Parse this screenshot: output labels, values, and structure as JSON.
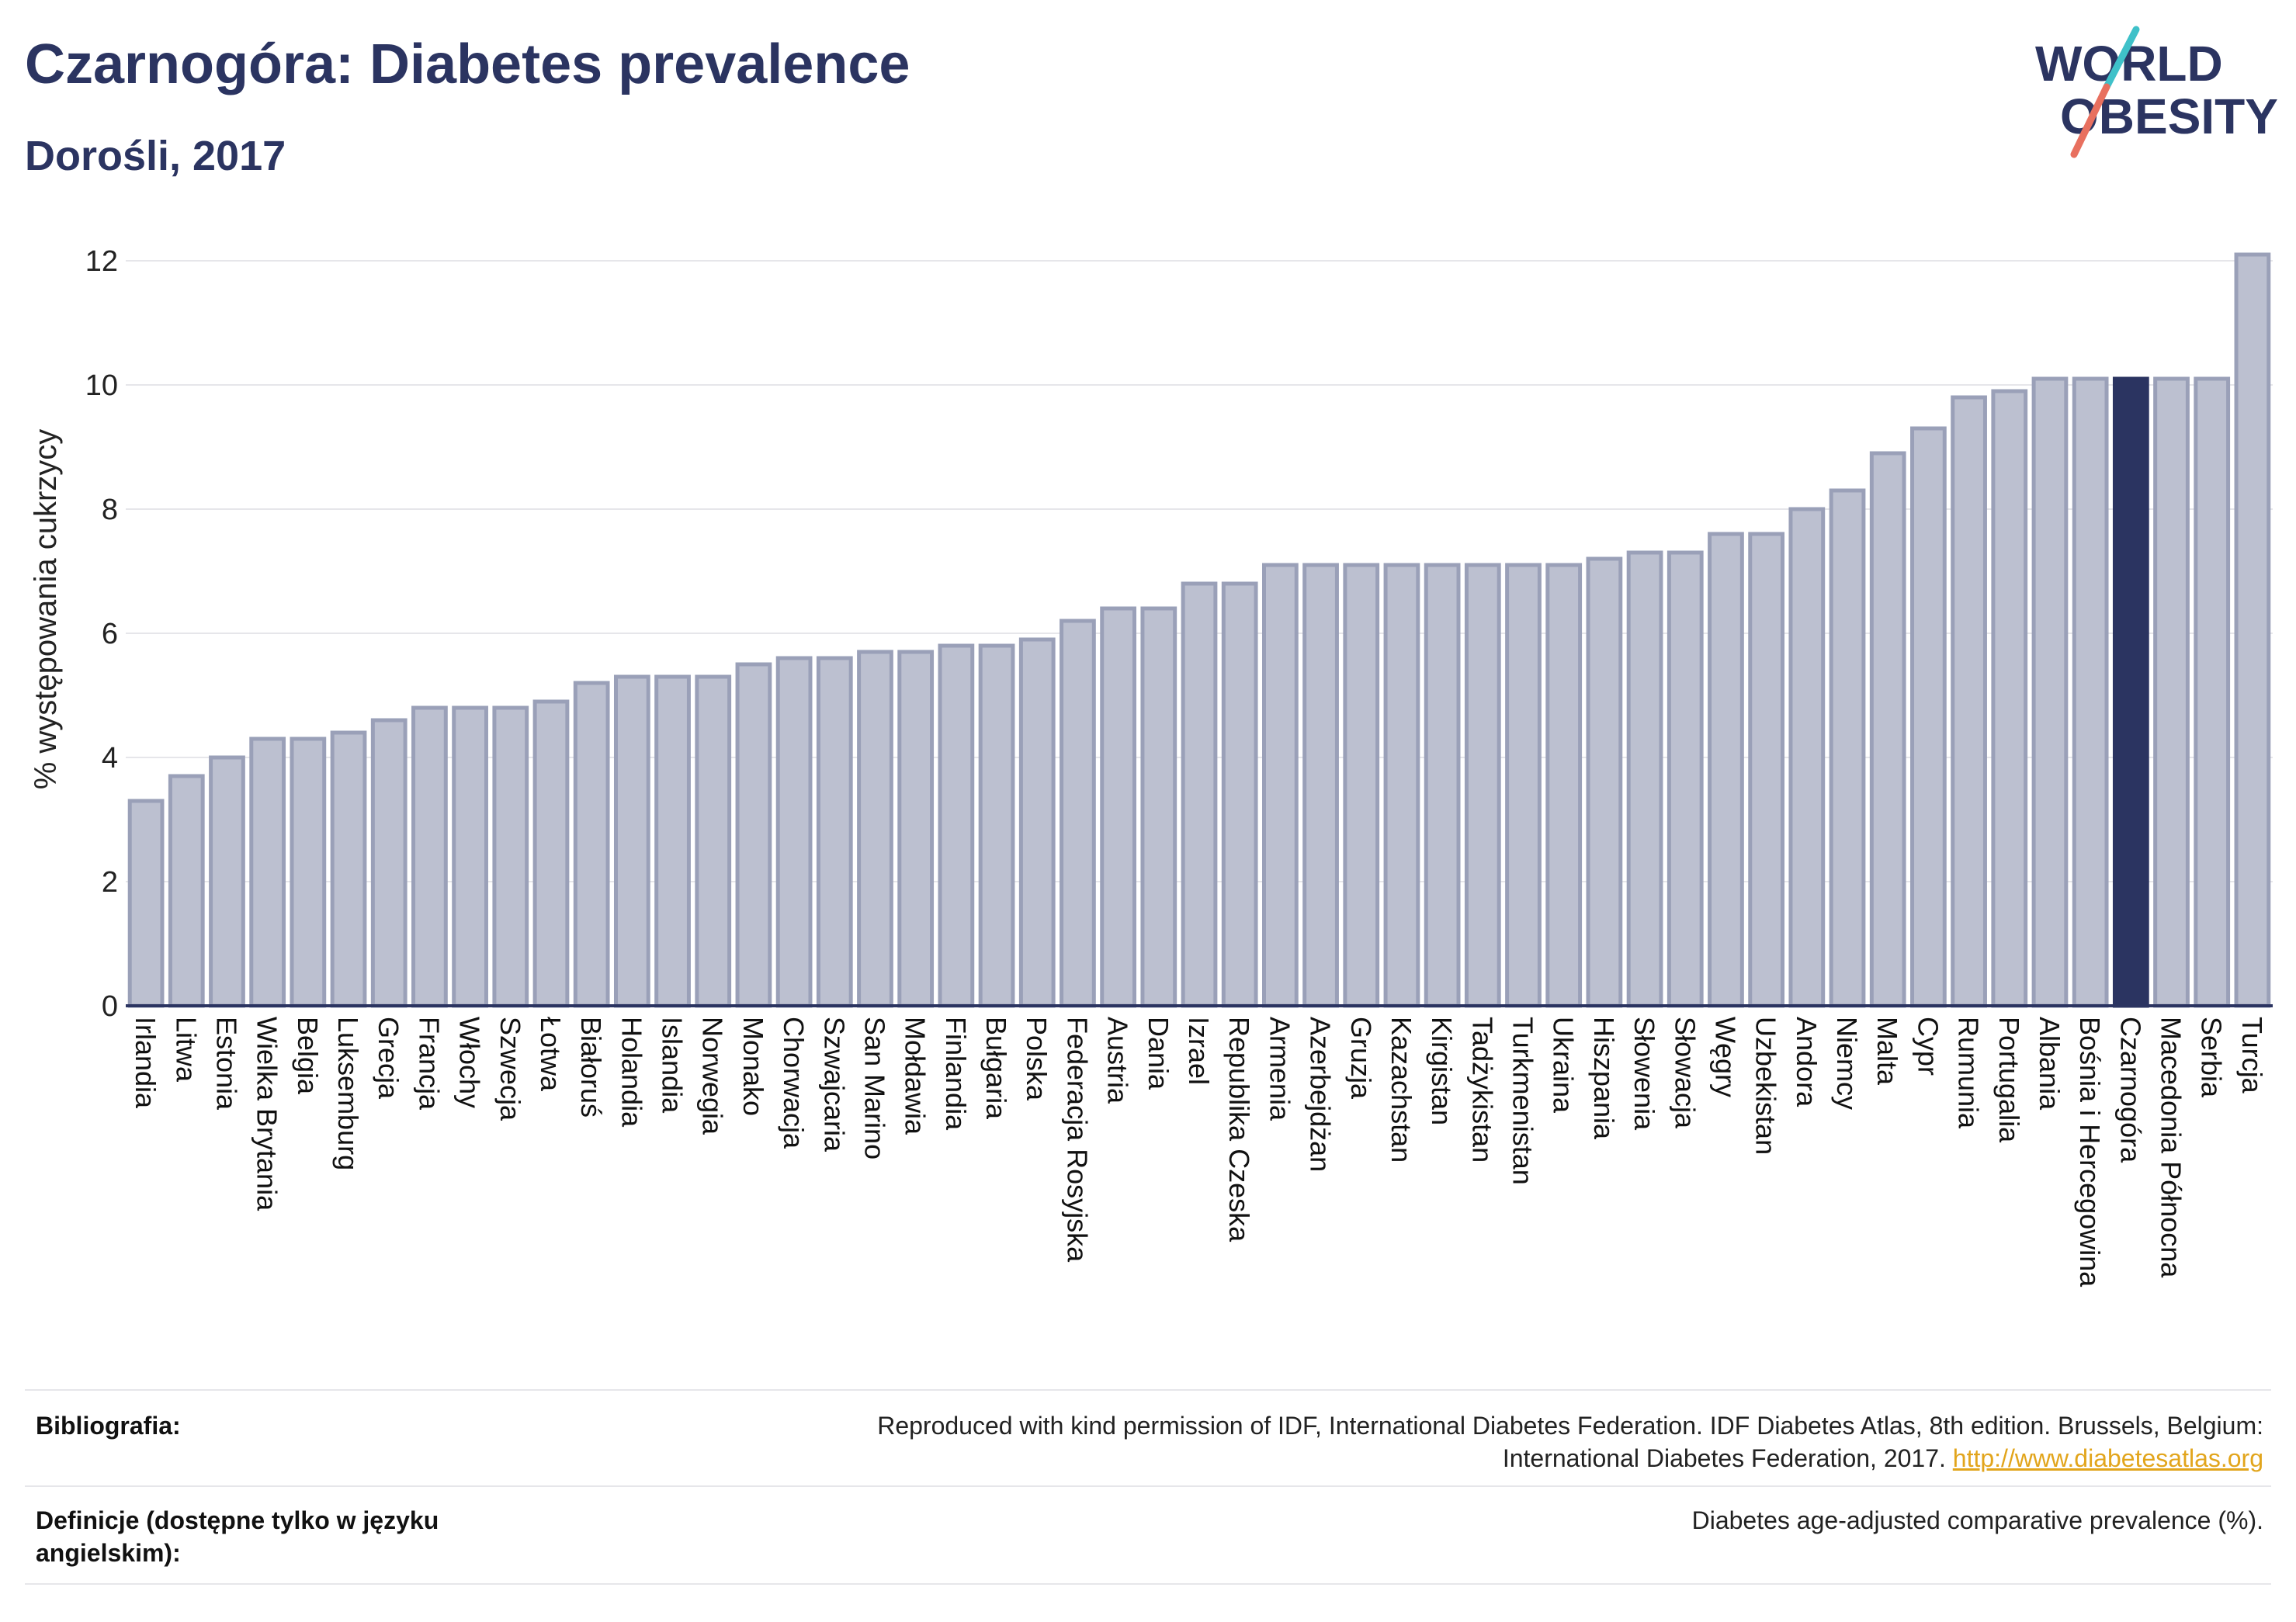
{
  "header": {
    "title": "Czarnogóra: Diabetes prevalence",
    "subtitle": "Dorośli, 2017",
    "logo": {
      "line1": "WORLD",
      "line2": "OBESITY",
      "slash_colors": [
        "#3fc1c9",
        "#e8705f"
      ]
    }
  },
  "colors": {
    "bar_fill": "#bcc0d0",
    "bar_stroke": "#9aa0b8",
    "highlight_fill": "#2b3461",
    "text": "#2b3461",
    "link": "#e2a51c"
  },
  "chart_data": {
    "type": "bar",
    "ylabel": "% występowania cukrzycy",
    "ylim": [
      0,
      12.5
    ],
    "yticks": [
      0,
      2,
      4,
      6,
      8,
      10,
      12
    ],
    "grid": true,
    "highlight": "Czarnogóra",
    "categories": [
      "Irlandia",
      "Litwa",
      "Estonia",
      "Wielka Brytania",
      "Belgia",
      "Luksemburg",
      "Grecja",
      "Francja",
      "Włochy",
      "Szwecja",
      "Łotwa",
      "Białoruś",
      "Holandia",
      "Islandia",
      "Norwegia",
      "Monako",
      "Chorwacja",
      "Szwajcaria",
      "San Marino",
      "Mołdawia",
      "Finlandia",
      "Bułgaria",
      "Polska",
      "Federacja Rosyjska",
      "Austria",
      "Dania",
      "Izrael",
      "Republika Czeska",
      "Armenia",
      "Azerbejdżan",
      "Gruzja",
      "Kazachstan",
      "Kirgistan",
      "Tadżykistan",
      "Turkmenistan",
      "Ukraina",
      "Hiszpania",
      "Słowenia",
      "Słowacja",
      "Węgry",
      "Uzbekistan",
      "Andora",
      "Niemcy",
      "Malta",
      "Cypr",
      "Rumunia",
      "Portugalia",
      "Albania",
      "Bośnia i Hercegowina",
      "Czarnogóra",
      "Macedonia Północna",
      "Serbia",
      "Turcja"
    ],
    "values": [
      3.3,
      3.7,
      4.0,
      4.3,
      4.3,
      4.4,
      4.6,
      4.8,
      4.8,
      4.8,
      4.9,
      5.2,
      5.3,
      5.3,
      5.3,
      5.5,
      5.6,
      5.6,
      5.7,
      5.7,
      5.8,
      5.8,
      5.9,
      6.2,
      6.4,
      6.4,
      6.8,
      6.8,
      7.1,
      7.1,
      7.1,
      7.1,
      7.1,
      7.1,
      7.1,
      7.1,
      7.2,
      7.3,
      7.3,
      7.6,
      7.6,
      8.0,
      8.3,
      8.9,
      9.3,
      9.8,
      9.9,
      10.1,
      10.1,
      10.1,
      10.1,
      10.1,
      12.1
    ]
  },
  "footer": {
    "bibliography_label": "Bibliografia:",
    "bibliography_text_line1": "Reproduced with kind permission of IDF, International Diabetes Federation. IDF Diabetes Atlas, 8th edition. Brussels, Belgium:",
    "bibliography_text_line2": "International Diabetes Federation, 2017.",
    "bibliography_link": "http://www.diabetesatlas.org",
    "definitions_label_line1": "Definicje (dostępne tylko w języku",
    "definitions_label_line2": "angielskim):",
    "definitions_text": "Diabetes age-adjusted comparative prevalence (%)."
  }
}
